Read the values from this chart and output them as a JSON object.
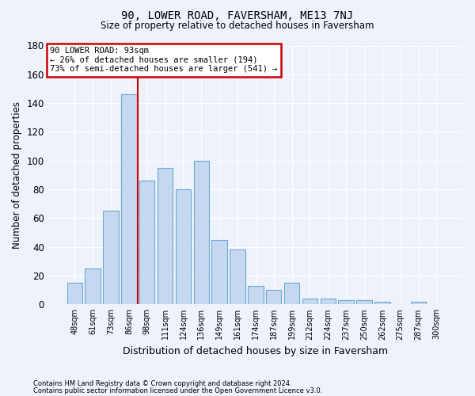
{
  "title": "90, LOWER ROAD, FAVERSHAM, ME13 7NJ",
  "subtitle": "Size of property relative to detached houses in Faversham",
  "xlabel": "Distribution of detached houses by size in Faversham",
  "ylabel": "Number of detached properties",
  "categories": [
    "48sqm",
    "61sqm",
    "73sqm",
    "86sqm",
    "98sqm",
    "111sqm",
    "124sqm",
    "136sqm",
    "149sqm",
    "161sqm",
    "174sqm",
    "187sqm",
    "199sqm",
    "212sqm",
    "224sqm",
    "237sqm",
    "250sqm",
    "262sqm",
    "275sqm",
    "287sqm",
    "300sqm"
  ],
  "values": [
    15,
    25,
    65,
    146,
    86,
    95,
    80,
    100,
    45,
    38,
    13,
    10,
    15,
    4,
    4,
    3,
    3,
    2,
    0,
    2,
    0
  ],
  "bar_color": "#c5d8f0",
  "bar_edge_color": "#6aaad4",
  "background_color": "#eef2fb",
  "grid_color": "#ffffff",
  "annotation_text": "90 LOWER ROAD: 93sqm\n← 26% of detached houses are smaller (194)\n73% of semi-detached houses are larger (541) →",
  "annotation_box_color": "#ffffff",
  "annotation_box_edge_color": "#cc0000",
  "vline_color": "#cc0000",
  "ylim": [
    0,
    180
  ],
  "yticks": [
    0,
    20,
    40,
    60,
    80,
    100,
    120,
    140,
    160,
    180
  ],
  "footer_line1": "Contains HM Land Registry data © Crown copyright and database right 2024.",
  "footer_line2": "Contains public sector information licensed under the Open Government Licence v3.0."
}
